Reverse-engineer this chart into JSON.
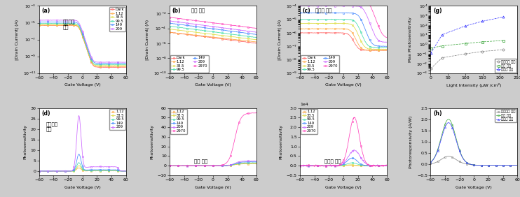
{
  "panel_a": {
    "title": "수평구조\n소자",
    "xlabel": "Gate Voltage (V)",
    "ylabel": "|Drain Current| (A)",
    "legend": [
      "Dark",
      "1.12",
      "33.5",
      "99.5",
      "149",
      "209"
    ],
    "colors": [
      "#ff6666",
      "#ffaa44",
      "#dddd44",
      "#44ddaa",
      "#4488ff",
      "#cc66ff"
    ],
    "ylim": [
      1e-11,
      0.001
    ],
    "xlim": [
      -60,
      60
    ]
  },
  "panel_b": {
    "title": "기존 소자",
    "xlabel": "Gate Voltage (V)",
    "ylabel": "|Drain Current| (A)",
    "legend": [
      "Dark",
      "1.12",
      "33.5",
      "99.5",
      "149",
      "209",
      "2970"
    ],
    "colors": [
      "#ff6666",
      "#ffaa44",
      "#dddd44",
      "#44ddaa",
      "#4488ff",
      "#cc66ff",
      "#ff44bb"
    ],
    "ylim": [
      1e-10,
      0.1
    ],
    "xlim": [
      -60,
      60
    ]
  },
  "panel_c": {
    "title": "개발된 소자",
    "xlabel": "Gate Voltage (V)",
    "ylabel": "|Drain Current| (A)",
    "legend": [
      "Dark",
      "1.12",
      "33.5",
      "99.5",
      "149",
      "209",
      "2970"
    ],
    "colors": [
      "#ff6666",
      "#ffaa44",
      "#dddd44",
      "#44ddaa",
      "#4488ff",
      "#cc66ff",
      "#ff44bb"
    ],
    "ylim": [
      1e-09,
      0.0001
    ],
    "xlim": [
      -60,
      60
    ]
  },
  "panel_g": {
    "title": "(g)",
    "xlabel": "Light Intensity (μW /cm²)",
    "ylabel": "Max Photosensitivity",
    "xlim": [
      0,
      250
    ],
    "ylim": [
      0.001,
      10000.0
    ],
    "series": [
      {
        "label": "수평구조 소자",
        "x": [
          1.12,
          33.5,
          99.5,
          149,
          209
        ],
        "y": [
          0.003,
          0.04,
          0.1,
          0.18,
          0.28
        ],
        "color": "#888888",
        "marker": "o"
      },
      {
        "label": "기존 소자",
        "x": [
          1.12,
          33.5,
          99.5,
          149,
          209
        ],
        "y": [
          0.4,
          0.7,
          1.2,
          1.8,
          2.5
        ],
        "color": "#44aa44",
        "marker": "s"
      },
      {
        "label": "개발된 소자",
        "x": [
          1.12,
          33.5,
          99.5,
          149,
          209
        ],
        "y": [
          0.12,
          10.0,
          80.0,
          250.0,
          700.0
        ],
        "color": "#4444ff",
        "marker": "^"
      }
    ]
  },
  "panel_d": {
    "title": "수평구조\n소자",
    "xlabel": "Gate Voltage (V)",
    "ylabel": "Photosensitivity",
    "xlim": [
      -60,
      60
    ],
    "ylim": [
      -2,
      30
    ],
    "legend": [
      "1.12",
      "33.5",
      "99.5",
      "149",
      "209"
    ],
    "colors": [
      "#ffaa44",
      "#dddd44",
      "#44ddaa",
      "#4488ff",
      "#cc66ff"
    ]
  },
  "panel_e": {
    "title": "기존 소자",
    "xlabel": "Gate Voltage (V)",
    "ylabel": "Photosensitivity",
    "xlim": [
      -60,
      60
    ],
    "ylim": [
      -10,
      60
    ],
    "legend": [
      "1.12",
      "33.5",
      "99.5",
      "149",
      "209",
      "2970"
    ],
    "colors": [
      "#ffaa44",
      "#dddd44",
      "#44ddaa",
      "#4488ff",
      "#cc66ff",
      "#ff44bb"
    ]
  },
  "panel_f": {
    "title": "개발된 소자",
    "xlabel": "Gate Voltage (V)",
    "ylabel": "Photosensitivity",
    "xlim": [
      -60,
      60
    ],
    "ylim": [
      -5000,
      30000
    ],
    "legend": [
      "1.12",
      "33.5",
      "99.5",
      "149",
      "209",
      "2970"
    ],
    "colors": [
      "#ffaa44",
      "#dddd44",
      "#44ddaa",
      "#4488ff",
      "#cc66ff",
      "#ff44bb"
    ]
  },
  "panel_h": {
    "xlabel": "Gate Voltage (V)",
    "ylabel": "Photoresponsivity (A/W)",
    "xlim": [
      -60,
      60
    ],
    "ylim": [
      -0.5,
      2.5
    ],
    "series": [
      {
        "label": "수평구조 소자",
        "color": "#888888",
        "marker": "o"
      },
      {
        "label": "기존 소자",
        "color": "#44aa44",
        "marker": "s"
      },
      {
        "label": "개발된 소자",
        "color": "#4444ff",
        "marker": "^"
      }
    ]
  }
}
